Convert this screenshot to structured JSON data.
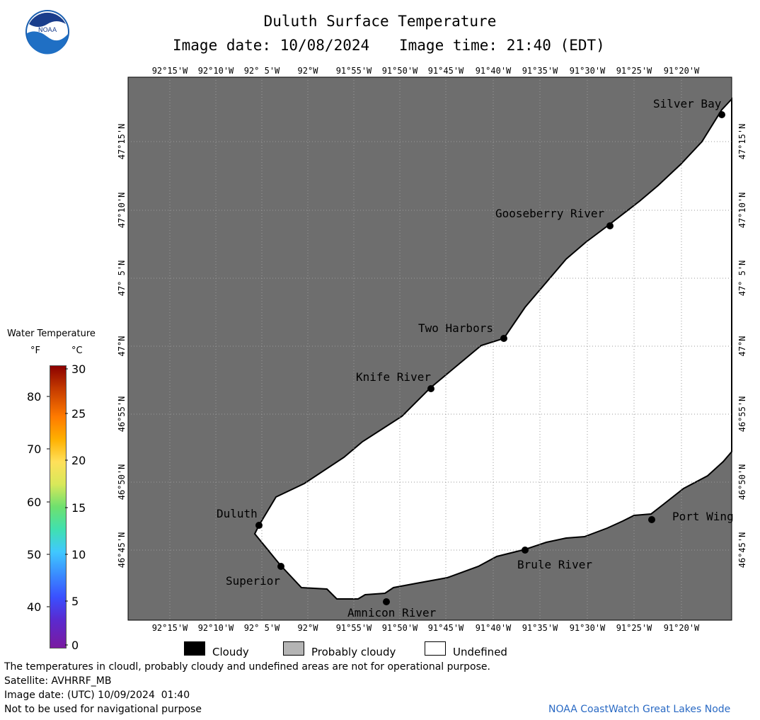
{
  "header": {
    "title": "Duluth Surface Temperature",
    "image_date_label": "Image date: 10/08/2024",
    "image_time_label": "Image time: 21:40 (EDT)"
  },
  "logo": {
    "text": "NOAA"
  },
  "map": {
    "lon_labels": [
      "92°15'W",
      "92°10'W",
      "92° 5'W",
      "92°W",
      "91°55'W",
      "91°50'W",
      "91°45'W",
      "91°40'W",
      "91°35'W",
      "91°30'W",
      "91°25'W",
      "91°20'W"
    ],
    "lat_labels": [
      "47°15'N",
      "47°10'N",
      "47° 5'N",
      "47°N",
      "46°55'N",
      "46°50'N",
      "46°45'N"
    ],
    "places": [
      "Silver Bay",
      "Gooseberry River",
      "Two Harbors",
      "Knife River",
      "Duluth",
      "Superior",
      "Amnicon River",
      "Brule River",
      "Port Wing"
    ],
    "land_color": "#6e6e6e",
    "water_color": "#ffffff",
    "grid_color": "#9a9a9a"
  },
  "colorbar": {
    "title": "Water Temperature",
    "unit_f": "°F",
    "unit_c": "°C",
    "f_ticks": [
      "80",
      "70",
      "60",
      "50",
      "40"
    ],
    "c_ticks": [
      "30",
      "25",
      "20",
      "15",
      "10",
      "5",
      "0"
    ]
  },
  "legend": {
    "items": [
      {
        "label": "Cloudy",
        "color": "#000000"
      },
      {
        "label": "Probably cloudy",
        "color": "#b4b4b4"
      },
      {
        "label": "Undefined",
        "color": "#ffffff"
      }
    ]
  },
  "footer": {
    "note": "The temperatures in cloudl, probably cloudy and undefined areas are not for operational purpose.",
    "satellite": "Satellite: AVHRRF_MB",
    "utc_date": "Image date: (UTC) 10/09/2024  01:40",
    "disclaimer": "Not to be used for navigational purpose",
    "credit": "NOAA CoastWatch Great Lakes Node"
  }
}
